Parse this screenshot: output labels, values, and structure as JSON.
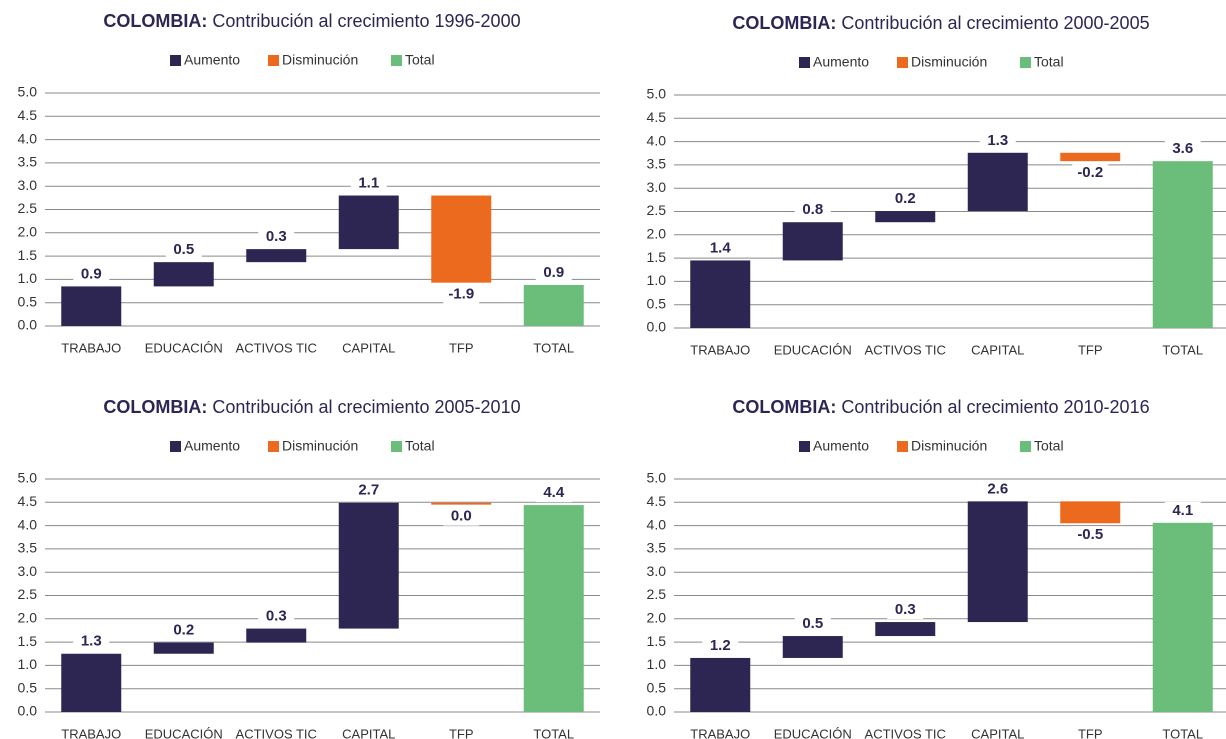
{
  "chart_data": [
    {
      "type": "waterfall",
      "title_bold": "COLOMBIA:",
      "title": "Contribución al crecimiento 1996-2000",
      "categories": [
        "TRABAJO",
        "EDUCACIÓN",
        "ACTIVOS TIC",
        "CAPITAL",
        "TFP",
        "TOTAL"
      ],
      "measures": [
        "relative",
        "relative",
        "relative",
        "relative",
        "relative",
        "total"
      ],
      "values": [
        0.85,
        0.52,
        0.28,
        1.15,
        -1.87,
        0.88
      ],
      "value_labels": [
        "0.9",
        "0.5",
        "0.3",
        "1.1",
        "-1.9",
        "0.9"
      ],
      "series": [
        {
          "name": "Aumento",
          "color": "#2e2652"
        },
        {
          "name": "Disminución",
          "color": "#ec6a1e"
        },
        {
          "name": "Total",
          "color": "#6bbd7a"
        }
      ],
      "ylim": [
        0,
        5
      ],
      "yticks": [
        {
          "value": 0,
          "label": "0.0"
        },
        {
          "value": 0.5,
          "label": "0.5"
        },
        {
          "value": 1,
          "label": "1.0"
        },
        {
          "value": 1.5,
          "label": "1.5"
        },
        {
          "value": 2,
          "label": "2.0"
        },
        {
          "value": 2.5,
          "label": "2.5"
        },
        {
          "value": 3,
          "label": "3.0"
        },
        {
          "value": 3.5,
          "label": "3.5"
        },
        {
          "value": 4,
          "label": "4.0"
        },
        {
          "value": 4.5,
          "label": "4.5"
        },
        {
          "value": 5,
          "label": "5.0"
        }
      ],
      "grid": true
    },
    {
      "type": "waterfall",
      "title_bold": "COLOMBIA:",
      "title": "Contribución al crecimiento 2000-2005",
      "categories": [
        "TRABAJO",
        "EDUCACIÓN",
        "ACTIVOS TIC",
        "CAPITAL",
        "TFP",
        "TOTAL"
      ],
      "measures": [
        "relative",
        "relative",
        "relative",
        "relative",
        "relative",
        "total"
      ],
      "values": [
        1.45,
        0.82,
        0.24,
        1.25,
        -0.18,
        3.58
      ],
      "value_labels": [
        "1.4",
        "0.8",
        "0.2",
        "1.3",
        "-0.2",
        "3.6"
      ],
      "series": [
        {
          "name": "Aumento",
          "color": "#2e2652"
        },
        {
          "name": "Disminución",
          "color": "#ec6a1e"
        },
        {
          "name": "Total",
          "color": "#6bbd7a"
        }
      ],
      "ylim": [
        0,
        5
      ],
      "yticks": [
        {
          "value": 0,
          "label": "0.0"
        },
        {
          "value": 0.5,
          "label": "0.5"
        },
        {
          "value": 1,
          "label": "1.0"
        },
        {
          "value": 1.5,
          "label": "1.5"
        },
        {
          "value": 2,
          "label": "2.0"
        },
        {
          "value": 2.5,
          "label": "2.5"
        },
        {
          "value": 3,
          "label": "3.0"
        },
        {
          "value": 3.5,
          "label": "3.5"
        },
        {
          "value": 4,
          "label": "4.0"
        },
        {
          "value": 4.5,
          "label": "4.5"
        },
        {
          "value": 5,
          "label": "5.0"
        }
      ],
      "grid": true
    },
    {
      "type": "waterfall",
      "title_bold": "COLOMBIA:",
      "title": "Contribución al crecimiento 2005-2010",
      "categories": [
        "TRABAJO",
        "EDUCACIÓN",
        "ACTIVOS TIC",
        "CAPITAL",
        "TFP",
        "TOTAL"
      ],
      "measures": [
        "relative",
        "relative",
        "relative",
        "relative",
        "relative",
        "total"
      ],
      "values": [
        1.25,
        0.24,
        0.3,
        2.7,
        -0.04,
        4.44
      ],
      "value_labels": [
        "1.3",
        "0.2",
        "0.3",
        "2.7",
        "0.0",
        "4.4"
      ],
      "series": [
        {
          "name": "Aumento",
          "color": "#2e2652"
        },
        {
          "name": "Disminución",
          "color": "#ec6a1e"
        },
        {
          "name": "Total",
          "color": "#6bbd7a"
        }
      ],
      "ylim": [
        0,
        5
      ],
      "yticks": [
        {
          "value": 0,
          "label": "0.0"
        },
        {
          "value": 0.5,
          "label": "0.5"
        },
        {
          "value": 1,
          "label": "1.0"
        },
        {
          "value": 1.5,
          "label": "1.5"
        },
        {
          "value": 2,
          "label": "2.0"
        },
        {
          "value": 2.5,
          "label": "2.5"
        },
        {
          "value": 3,
          "label": "3.0"
        },
        {
          "value": 3.5,
          "label": "3.5"
        },
        {
          "value": 4,
          "label": "4.0"
        },
        {
          "value": 4.5,
          "label": "4.5"
        },
        {
          "value": 5,
          "label": "5.0"
        }
      ],
      "grid": true
    },
    {
      "type": "waterfall",
      "title_bold": "COLOMBIA:",
      "title": "Contribución al crecimiento 2010-2016",
      "categories": [
        "TRABAJO",
        "EDUCACIÓN",
        "ACTIVOS TIC",
        "CAPITAL",
        "TFP",
        "TOTAL"
      ],
      "measures": [
        "relative",
        "relative",
        "relative",
        "relative",
        "relative",
        "total"
      ],
      "values": [
        1.16,
        0.47,
        0.3,
        2.59,
        -0.47,
        4.06
      ],
      "value_labels": [
        "1.2",
        "0.5",
        "0.3",
        "2.6",
        "-0.5",
        "4.1"
      ],
      "series": [
        {
          "name": "Aumento",
          "color": "#2e2652"
        },
        {
          "name": "Disminución",
          "color": "#ec6a1e"
        },
        {
          "name": "Total",
          "color": "#6bbd7a"
        }
      ],
      "ylim": [
        0,
        5
      ],
      "yticks": [
        {
          "value": 0,
          "label": "0.0"
        },
        {
          "value": 0.5,
          "label": "0.5"
        },
        {
          "value": 1,
          "label": "1.0"
        },
        {
          "value": 1.5,
          "label": "1.5"
        },
        {
          "value": 2,
          "label": "2.0"
        },
        {
          "value": 2.5,
          "label": "2.5"
        },
        {
          "value": 3,
          "label": "3.0"
        },
        {
          "value": 3.5,
          "label": "3.5"
        },
        {
          "value": 4,
          "label": "4.0"
        },
        {
          "value": 4.5,
          "label": "4.5"
        },
        {
          "value": 5,
          "label": "5.0"
        }
      ],
      "grid": true
    }
  ]
}
